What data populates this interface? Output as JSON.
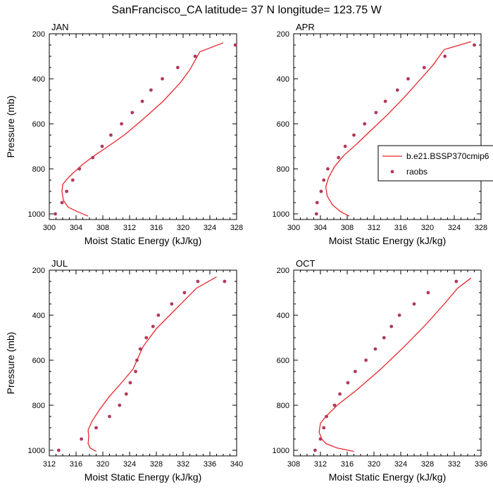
{
  "figure": {
    "title": "SanFrancisco_CA  latitude= 37 N longitude= 123.75 W"
  },
  "legend": {
    "entries": [
      {
        "label": "b.e21.BSSP370cmip6",
        "style": "line",
        "color": "#e8262a"
      },
      {
        "label": "raobs",
        "style": "marker",
        "color": "#b03a5b"
      }
    ]
  },
  "chart_data": [
    {
      "type": "line",
      "panel_label": "JAN",
      "xlabel": "Moist Static Energy (kJ/kg)",
      "ylabel": "Pressure (mb)",
      "xlim": [
        300,
        328
      ],
      "ylim": [
        1025,
        200
      ],
      "xticks": [
        300,
        304,
        308,
        312,
        316,
        320,
        324,
        328
      ],
      "yticks": [
        200,
        400,
        600,
        800,
        1000
      ],
      "series": [
        {
          "name": "b.e21.BSSP370cmip6",
          "style": "line",
          "x": [
            305.8,
            304.2,
            302.8,
            302.1,
            301.9,
            302.0,
            302.5,
            303.5,
            305.0,
            306.8,
            308.8,
            311.2,
            314.0,
            317.0,
            319.5,
            321.0,
            322.5,
            326.0
          ],
          "y": [
            1010,
            990,
            970,
            940,
            900,
            870,
            850,
            820,
            780,
            740,
            700,
            650,
            580,
            500,
            420,
            360,
            280,
            240
          ]
        },
        {
          "name": "raobs",
          "style": "marker",
          "x": [
            300.9,
            301.9,
            302.6,
            303.5,
            304.5,
            306.5,
            307.9,
            309.2,
            310.8,
            312.4,
            313.9,
            315.2,
            316.9,
            319.2,
            321.8,
            327.8
          ],
          "y": [
            1000,
            950,
            900,
            850,
            800,
            750,
            700,
            650,
            600,
            550,
            500,
            450,
            400,
            350,
            300,
            250
          ]
        }
      ]
    },
    {
      "type": "line",
      "panel_label": "APR",
      "xlabel": "Moist Static Energy (kJ/kg)",
      "ylabel": "",
      "xlim": [
        300,
        328
      ],
      "ylim": [
        1025,
        200
      ],
      "xticks": [
        300,
        304,
        308,
        312,
        316,
        320,
        324,
        328
      ],
      "yticks": [
        200,
        400,
        600,
        800,
        1000
      ],
      "series": [
        {
          "name": "b.e21.BSSP370cmip6",
          "style": "line",
          "x": [
            308.3,
            307.0,
            305.8,
            305.0,
            304.8,
            305.2,
            306.1,
            307.5,
            309.4,
            311.5,
            314.0,
            316.6,
            319.0,
            320.8,
            322.5,
            326.5
          ],
          "y": [
            1010,
            990,
            960,
            920,
            880,
            840,
            790,
            740,
            690,
            630,
            560,
            480,
            400,
            340,
            270,
            235
          ]
        },
        {
          "name": "raobs",
          "style": "marker",
          "x": [
            303.4,
            303.5,
            304.1,
            304.5,
            305.1,
            306.7,
            307.7,
            309.0,
            310.6,
            312.3,
            313.7,
            315.5,
            317.1,
            319.5,
            322.6,
            327.0
          ],
          "y": [
            1000,
            950,
            900,
            850,
            800,
            750,
            700,
            650,
            600,
            550,
            500,
            450,
            400,
            350,
            300,
            250
          ]
        }
      ]
    },
    {
      "type": "line",
      "panel_label": "JUL",
      "xlabel": "Moist Static Energy (kJ/kg)",
      "ylabel": "Pressure (mb)",
      "xlim": [
        312,
        340
      ],
      "ylim": [
        1025,
        200
      ],
      "xticks": [
        312,
        316,
        320,
        324,
        328,
        332,
        336,
        340
      ],
      "yticks": [
        200,
        400,
        600,
        800,
        1000
      ],
      "series": [
        {
          "name": "b.e21.BSSP370cmip6",
          "style": "line",
          "x": [
            319.0,
            318.1,
            317.8,
            317.9,
            317.8,
            318.4,
            319.5,
            321.0,
            322.8,
            324.5,
            326.0,
            328.0,
            330.0,
            332.0,
            334.0,
            337.0
          ],
          "y": [
            1005,
            990,
            970,
            940,
            910,
            870,
            820,
            760,
            700,
            640,
            540,
            460,
            400,
            340,
            280,
            230
          ]
        },
        {
          "name": "raobs",
          "style": "marker",
          "x": [
            313.4,
            316.8,
            319.0,
            321.0,
            322.5,
            323.5,
            324.1,
            324.9,
            325.1,
            325.6,
            326.5,
            327.5,
            328.3,
            330.3,
            332.2,
            334.2,
            338.2
          ],
          "y": [
            1000,
            950,
            900,
            850,
            800,
            750,
            700,
            650,
            600,
            550,
            500,
            450,
            400,
            350,
            300,
            250,
            250
          ]
        }
      ]
    },
    {
      "type": "line",
      "panel_label": "OCT",
      "xlabel": "Moist Static Energy (kJ/kg)",
      "ylabel": "",
      "xlim": [
        308,
        336
      ],
      "ylim": [
        1025,
        200
      ],
      "xticks": [
        308,
        312,
        316,
        320,
        324,
        328,
        332,
        336
      ],
      "yticks": [
        200,
        400,
        600,
        800,
        1000
      ],
      "series": [
        {
          "name": "b.e21.BSSP370cmip6",
          "style": "line",
          "x": [
            317.0,
            314.5,
            312.8,
            312.2,
            311.8,
            312.0,
            312.8,
            314.5,
            317.5,
            321.0,
            324.5,
            327.8,
            330.5,
            332.5,
            334.5
          ],
          "y": [
            1005,
            990,
            970,
            950,
            920,
            880,
            850,
            800,
            730,
            640,
            540,
            440,
            350,
            280,
            235
          ]
        },
        {
          "name": "raobs",
          "style": "marker",
          "x": [
            311.2,
            312.0,
            312.5,
            312.9,
            314.1,
            314.9,
            316.1,
            317.2,
            318.8,
            320.2,
            321.5,
            322.6,
            323.8,
            326.0,
            328.1,
            332.3
          ],
          "y": [
            1000,
            950,
            900,
            850,
            800,
            750,
            700,
            650,
            600,
            550,
            500,
            450,
            400,
            350,
            300,
            250
          ]
        }
      ]
    }
  ]
}
